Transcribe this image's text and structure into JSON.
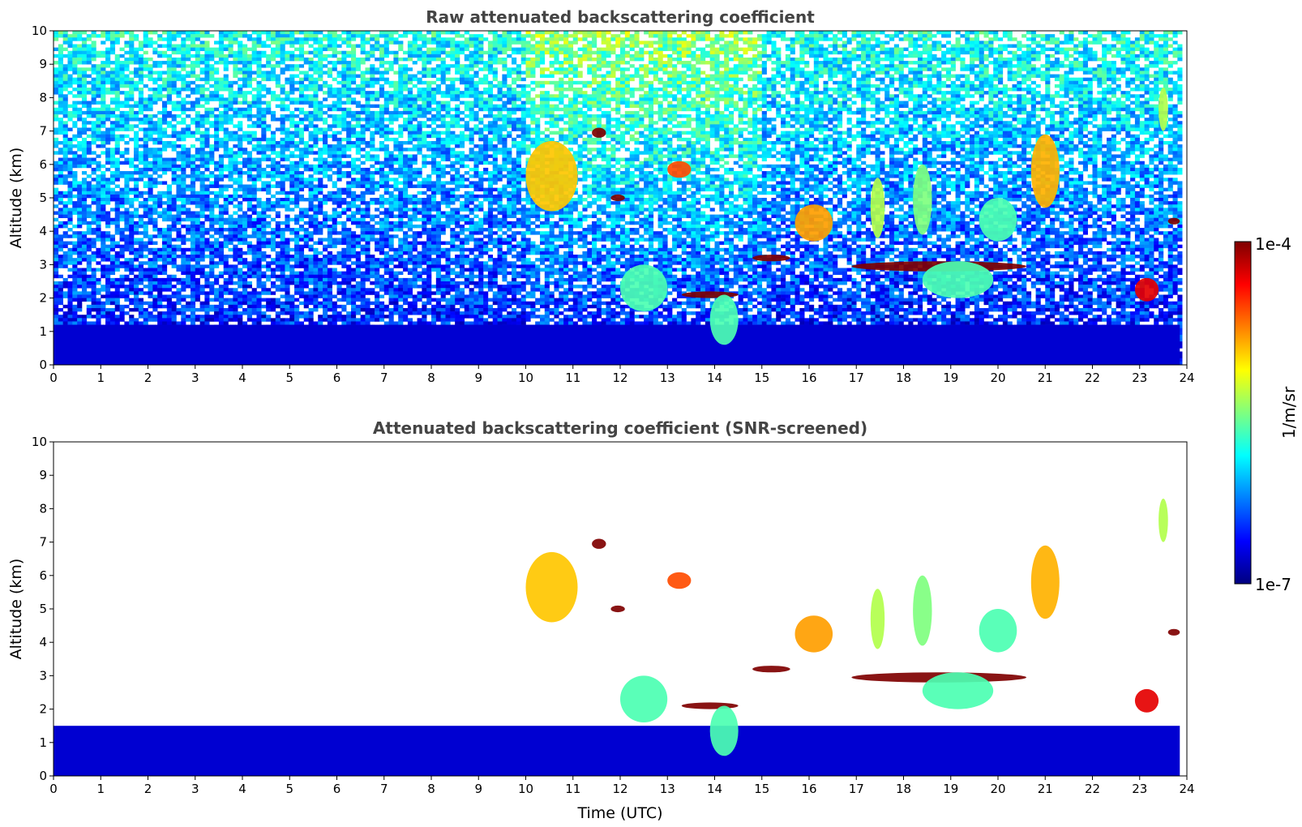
{
  "chart_data": [
    {
      "type": "heatmap",
      "title": "Raw attenuated backscattering coefficient",
      "xlabel": "",
      "ylabel": "Altitude (km)",
      "xlim": [
        0,
        24
      ],
      "ylim": [
        0,
        10
      ],
      "xticks": [
        "0",
        "1",
        "2",
        "3",
        "4",
        "5",
        "6",
        "7",
        "8",
        "9",
        "10",
        "11",
        "12",
        "13",
        "14",
        "15",
        "16",
        "17",
        "18",
        "19",
        "20",
        "21",
        "22",
        "23",
        "24"
      ],
      "yticks": [
        "0",
        "1",
        "2",
        "3",
        "4",
        "5",
        "6",
        "7",
        "8",
        "9",
        "10"
      ],
      "colorscale": "log",
      "noise": true,
      "features": [
        {
          "x": [
            0,
            23.85
          ],
          "y": [
            0,
            1.2
          ],
          "level": 0.08,
          "kind": "boundary-layer"
        },
        {
          "x": [
            14.8,
            15.6
          ],
          "y": [
            3.1,
            3.3
          ],
          "level": 1.0,
          "kind": "cloud-layer"
        },
        {
          "x": [
            16.9,
            20.6
          ],
          "y": [
            2.8,
            3.1
          ],
          "level": 1.0,
          "kind": "cloud-layer"
        },
        {
          "x": [
            13.3,
            14.5
          ],
          "y": [
            2.0,
            2.2
          ],
          "level": 1.0,
          "kind": "cloud-layer"
        },
        {
          "x": [
            15.7,
            16.5
          ],
          "y": [
            3.7,
            4.8
          ],
          "level": 0.72,
          "kind": "cloud"
        },
        {
          "x": [
            20.7,
            21.3
          ],
          "y": [
            4.7,
            6.9
          ],
          "level": 0.7,
          "kind": "cloud"
        },
        {
          "x": [
            10.0,
            11.1
          ],
          "y": [
            4.6,
            6.7
          ],
          "level": 0.68,
          "kind": "cloud"
        },
        {
          "x": [
            12.0,
            13.0
          ],
          "y": [
            1.6,
            3.0
          ],
          "level": 0.45,
          "kind": "cloud"
        },
        {
          "x": [
            13.9,
            14.5
          ],
          "y": [
            0.6,
            2.1
          ],
          "level": 0.45,
          "kind": "cloud"
        },
        {
          "x": [
            18.4,
            19.9
          ],
          "y": [
            2.0,
            3.1
          ],
          "level": 0.45,
          "kind": "cloud"
        },
        {
          "x": [
            19.6,
            20.4
          ],
          "y": [
            3.7,
            5.0
          ],
          "level": 0.45,
          "kind": "cloud"
        },
        {
          "x": [
            17.3,
            17.6
          ],
          "y": [
            3.8,
            5.6
          ],
          "level": 0.55,
          "kind": "cloud"
        },
        {
          "x": [
            18.2,
            18.6
          ],
          "y": [
            3.9,
            6.0
          ],
          "level": 0.5,
          "kind": "cloud"
        },
        {
          "x": [
            13.0,
            13.5
          ],
          "y": [
            5.6,
            6.1
          ],
          "level": 0.8,
          "kind": "cloud"
        },
        {
          "x": [
            11.4,
            11.7
          ],
          "y": [
            6.8,
            7.1
          ],
          "level": 1.0,
          "kind": "cloud"
        },
        {
          "x": [
            11.8,
            12.1
          ],
          "y": [
            4.9,
            5.1
          ],
          "level": 1.0,
          "kind": "cloud"
        },
        {
          "x": [
            23.4,
            23.6
          ],
          "y": [
            7.0,
            8.3
          ],
          "level": 0.55,
          "kind": "cloud"
        },
        {
          "x": [
            23.6,
            23.85
          ],
          "y": [
            4.2,
            4.4
          ],
          "level": 1.0,
          "kind": "cloud"
        },
        {
          "x": [
            22.9,
            23.4
          ],
          "y": [
            1.9,
            2.6
          ],
          "level": 0.9,
          "kind": "cloud"
        }
      ]
    },
    {
      "type": "heatmap",
      "title": "Attenuated backscattering coefficient (SNR-screened)",
      "xlabel": "Time (UTC)",
      "ylabel": "Altitude (km)",
      "xlim": [
        0,
        24
      ],
      "ylim": [
        0,
        10
      ],
      "xticks": [
        "0",
        "1",
        "2",
        "3",
        "4",
        "5",
        "6",
        "7",
        "8",
        "9",
        "10",
        "11",
        "12",
        "13",
        "14",
        "15",
        "16",
        "17",
        "18",
        "19",
        "20",
        "21",
        "22",
        "23",
        "24"
      ],
      "yticks": [
        "0",
        "1",
        "2",
        "3",
        "4",
        "5",
        "6",
        "7",
        "8",
        "9",
        "10"
      ],
      "colorscale": "log",
      "noise": false,
      "features": [
        {
          "x": [
            0,
            23.85
          ],
          "y": [
            0,
            1.5
          ],
          "level": 0.08,
          "kind": "boundary-layer"
        },
        {
          "x": [
            14.8,
            15.6
          ],
          "y": [
            3.1,
            3.3
          ],
          "level": 1.0,
          "kind": "cloud-layer"
        },
        {
          "x": [
            16.9,
            20.6
          ],
          "y": [
            2.8,
            3.1
          ],
          "level": 1.0,
          "kind": "cloud-layer"
        },
        {
          "x": [
            13.3,
            14.5
          ],
          "y": [
            2.0,
            2.2
          ],
          "level": 1.0,
          "kind": "cloud-layer"
        },
        {
          "x": [
            15.7,
            16.5
          ],
          "y": [
            3.7,
            4.8
          ],
          "level": 0.72,
          "kind": "cloud"
        },
        {
          "x": [
            20.7,
            21.3
          ],
          "y": [
            4.7,
            6.9
          ],
          "level": 0.7,
          "kind": "cloud"
        },
        {
          "x": [
            10.0,
            11.1
          ],
          "y": [
            4.6,
            6.7
          ],
          "level": 0.68,
          "kind": "cloud"
        },
        {
          "x": [
            12.0,
            13.0
          ],
          "y": [
            1.6,
            3.0
          ],
          "level": 0.45,
          "kind": "cloud"
        },
        {
          "x": [
            13.9,
            14.5
          ],
          "y": [
            0.6,
            2.1
          ],
          "level": 0.45,
          "kind": "cloud"
        },
        {
          "x": [
            18.4,
            19.9
          ],
          "y": [
            2.0,
            3.1
          ],
          "level": 0.45,
          "kind": "cloud"
        },
        {
          "x": [
            19.6,
            20.4
          ],
          "y": [
            3.7,
            5.0
          ],
          "level": 0.45,
          "kind": "cloud"
        },
        {
          "x": [
            17.3,
            17.6
          ],
          "y": [
            3.8,
            5.6
          ],
          "level": 0.55,
          "kind": "cloud"
        },
        {
          "x": [
            18.2,
            18.6
          ],
          "y": [
            3.9,
            6.0
          ],
          "level": 0.5,
          "kind": "cloud"
        },
        {
          "x": [
            13.0,
            13.5
          ],
          "y": [
            5.6,
            6.1
          ],
          "level": 0.8,
          "kind": "cloud"
        },
        {
          "x": [
            11.4,
            11.7
          ],
          "y": [
            6.8,
            7.1
          ],
          "level": 1.0,
          "kind": "cloud"
        },
        {
          "x": [
            11.8,
            12.1
          ],
          "y": [
            4.9,
            5.1
          ],
          "level": 1.0,
          "kind": "cloud"
        },
        {
          "x": [
            23.4,
            23.6
          ],
          "y": [
            7.0,
            8.3
          ],
          "level": 0.55,
          "kind": "cloud"
        },
        {
          "x": [
            23.6,
            23.85
          ],
          "y": [
            4.2,
            4.4
          ],
          "level": 1.0,
          "kind": "cloud"
        },
        {
          "x": [
            22.9,
            23.4
          ],
          "y": [
            1.9,
            2.6
          ],
          "level": 0.9,
          "kind": "cloud"
        }
      ]
    }
  ],
  "colorbar": {
    "label": "1/m/sr",
    "max_label": "1e-4",
    "min_label": "1e-7",
    "colors": [
      "#00007f",
      "#0000ff",
      "#007fff",
      "#00ffff",
      "#7fff7f",
      "#ffff00",
      "#ff7f00",
      "#ff0000",
      "#7f0000"
    ]
  }
}
